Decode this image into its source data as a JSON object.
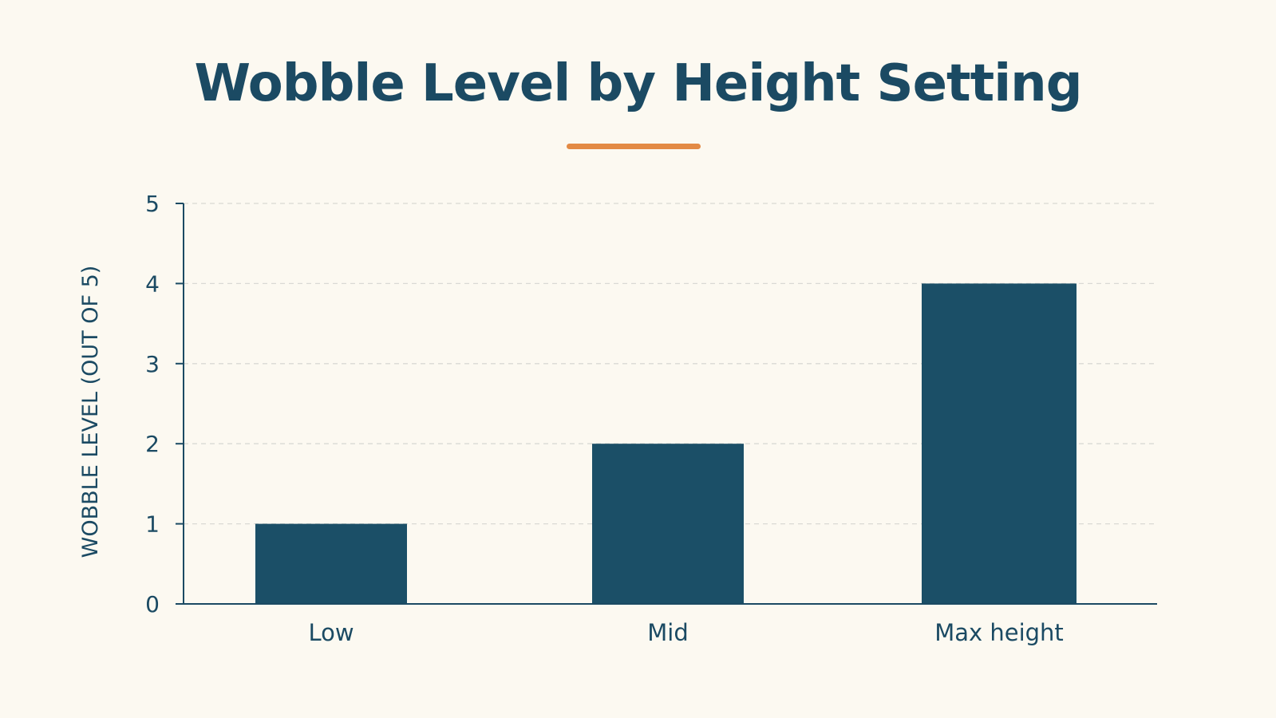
{
  "chart_data": {
    "type": "bar",
    "title": "Wobble Level by Height Setting",
    "xlabel": "",
    "ylabel": "WOBBLE LEVEL (OUT OF 5)",
    "categories": [
      "Low",
      "Mid",
      "Max height"
    ],
    "values": [
      1,
      2,
      4
    ],
    "ylim": [
      0,
      5
    ],
    "yticks": [
      "0",
      "1",
      "2",
      "3",
      "4",
      "5"
    ],
    "grid": true,
    "legend": "none"
  },
  "colors": {
    "background": "#fcf9f1",
    "bar": "#1b4f67",
    "title": "#1b4a63",
    "accent_rule": "#e38a45",
    "axis": "#1b4a63",
    "grid": "#d9d9d4"
  }
}
